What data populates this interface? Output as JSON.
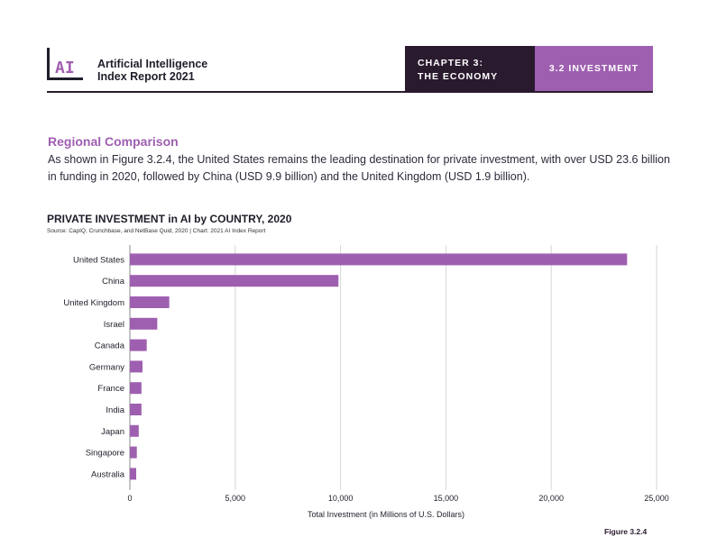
{
  "header": {
    "logo_text": "AI",
    "report_title_line1": "Artificial Intelligence",
    "report_title_line2": "Index Report 2021",
    "chapter_line1": "CHAPTER 3:",
    "chapter_line2": "THE ECONOMY",
    "section": "3.2 INVESTMENT"
  },
  "section": {
    "heading": "Regional Comparison",
    "body": "As shown in Figure 3.2.4, the United States remains the leading destination for private investment, with over USD 23.6 billion in funding in 2020, followed by China (USD 9.9 billion) and the United Kingdom (USD 1.9 billion)."
  },
  "figure_label": "Figure 3.2.4",
  "colors": {
    "bar": "#9e5fb0",
    "dark": "#2a1a2e",
    "accent": "#9e5fb0"
  },
  "chart_data": {
    "type": "bar",
    "orientation": "horizontal",
    "title": "PRIVATE INVESTMENT in AI by COUNTRY, 2020",
    "subtitle": "Source: CapIQ, Crunchbase, and NetBase Quid, 2020 | Chart: 2021 AI Index Report",
    "xlabel": "Total Investment (in Millions of U.S. Dollars)",
    "ylabel": "",
    "categories": [
      "United States",
      "China",
      "United Kingdom",
      "Israel",
      "Canada",
      "Germany",
      "France",
      "India",
      "Japan",
      "Singapore",
      "Australia"
    ],
    "values": [
      23600,
      9900,
      1870,
      1300,
      800,
      600,
      550,
      550,
      420,
      330,
      300
    ],
    "xlim": [
      0,
      25000
    ],
    "xticks": [
      0,
      5000,
      10000,
      15000,
      20000,
      25000
    ],
    "xtick_labels": [
      "0",
      "5,000",
      "10,000",
      "15,000",
      "20,000",
      "25,000"
    ],
    "grid": "vertical",
    "legend": "none"
  }
}
